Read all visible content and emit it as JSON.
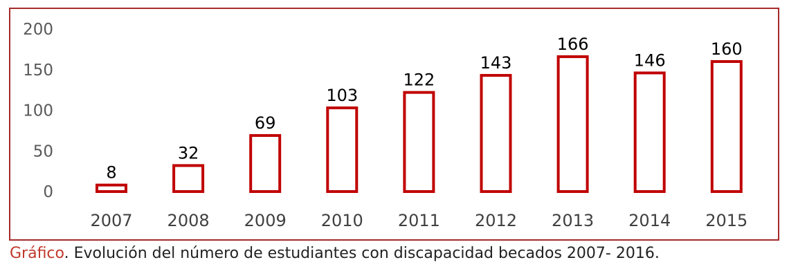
{
  "chart_data": {
    "type": "bar",
    "title": "",
    "xlabel": "",
    "ylabel": "",
    "categories": [
      "2007",
      "2008",
      "2009",
      "2010",
      "2011",
      "2012",
      "2013",
      "2014",
      "2015"
    ],
    "values": [
      8,
      32,
      69,
      103,
      122,
      143,
      166,
      146,
      160
    ],
    "ylim": [
      0,
      200
    ],
    "yticks": [
      "0",
      "50",
      "100",
      "150",
      "200"
    ],
    "grid": false,
    "legend": "none",
    "bar_stroke_color": "#c00000",
    "bar_fill_color": "#ffffff"
  },
  "caption": {
    "label": "Gráfico",
    "text": ". Evolución del número de estudiantes con discapacidad becados 2007- 2016."
  }
}
